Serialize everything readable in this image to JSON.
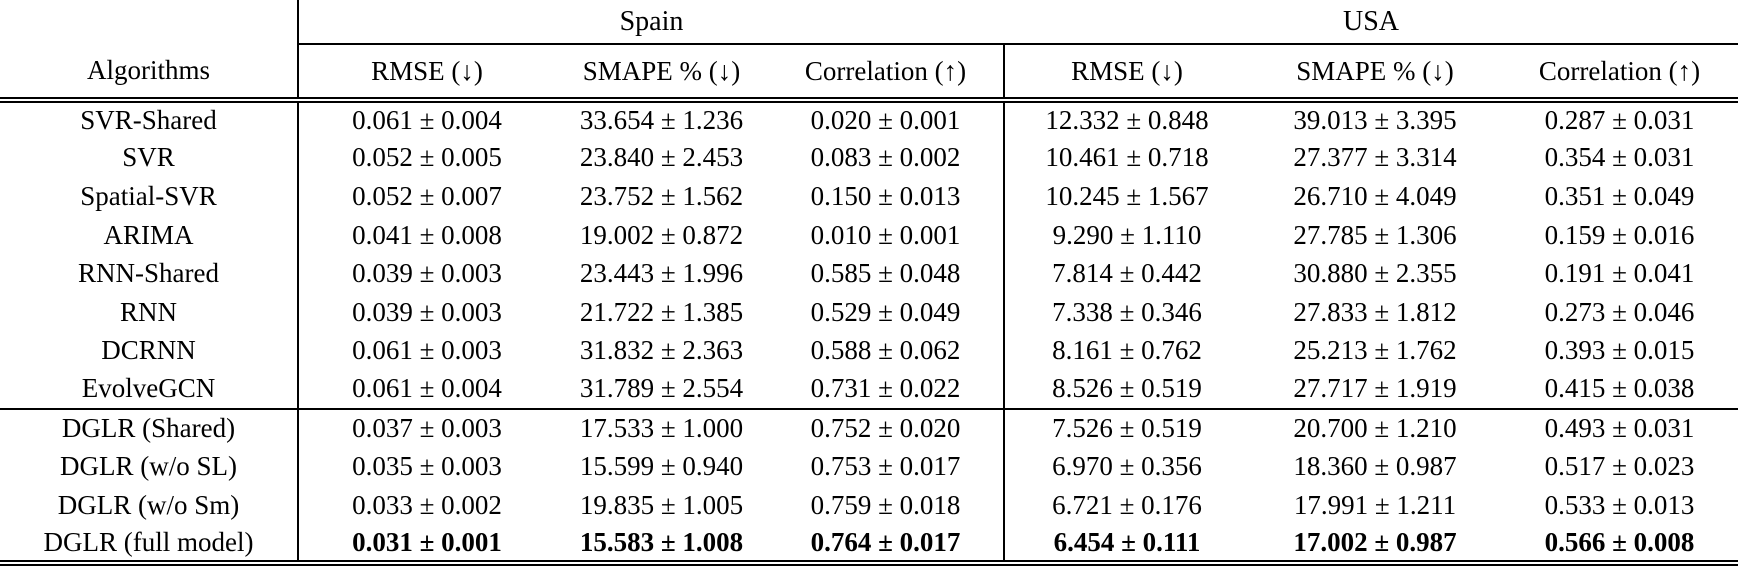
{
  "table": {
    "groups": [
      "Spain",
      "USA"
    ],
    "algorithms_header": "Algorithms",
    "metric_headers": [
      "RMSE (↓)",
      "SMAPE % (↓)",
      "Correlation (↑)",
      "RMSE (↓)",
      "SMAPE % (↓)",
      "Correlation (↑)"
    ],
    "sections": [
      {
        "rows": [
          {
            "name": "SVR-Shared",
            "bold": false,
            "values": [
              "0.061 ± 0.004",
              "33.654 ± 1.236",
              "0.020 ± 0.001",
              "12.332 ± 0.848",
              "39.013 ± 3.395",
              "0.287 ± 0.031"
            ]
          },
          {
            "name": "SVR",
            "bold": false,
            "values": [
              "0.052 ± 0.005",
              "23.840 ± 2.453",
              "0.083 ± 0.002",
              "10.461 ± 0.718",
              "27.377 ± 3.314",
              "0.354 ± 0.031"
            ]
          },
          {
            "name": "Spatial-SVR",
            "bold": false,
            "values": [
              "0.052 ± 0.007",
              "23.752 ± 1.562",
              "0.150 ± 0.013",
              "10.245 ± 1.567",
              "26.710 ± 4.049",
              "0.351 ± 0.049"
            ]
          },
          {
            "name": "ARIMA",
            "bold": false,
            "values": [
              "0.041 ± 0.008",
              "19.002 ± 0.872",
              "0.010 ± 0.001",
              "9.290 ± 1.110",
              "27.785 ± 1.306",
              "0.159 ± 0.016"
            ]
          },
          {
            "name": "RNN-Shared",
            "bold": false,
            "values": [
              "0.039 ± 0.003",
              "23.443 ± 1.996",
              "0.585 ± 0.048",
              "7.814 ± 0.442",
              "30.880 ± 2.355",
              "0.191 ± 0.041"
            ]
          },
          {
            "name": "RNN",
            "bold": false,
            "values": [
              "0.039 ± 0.003",
              "21.722 ± 1.385",
              "0.529 ± 0.049",
              "7.338 ± 0.346",
              "27.833 ± 1.812",
              "0.273 ± 0.046"
            ]
          },
          {
            "name": "DCRNN",
            "bold": false,
            "values": [
              "0.061 ± 0.003",
              "31.832 ± 2.363",
              "0.588 ± 0.062",
              "8.161 ± 0.762",
              "25.213 ± 1.762",
              "0.393 ± 0.015"
            ]
          },
          {
            "name": "EvolveGCN",
            "bold": false,
            "values": [
              "0.061 ± 0.004",
              "31.789 ± 2.554",
              "0.731 ± 0.022",
              "8.526 ± 0.519",
              "27.717 ± 1.919",
              "0.415 ± 0.038"
            ]
          }
        ]
      },
      {
        "rows": [
          {
            "name": "DGLR (Shared)",
            "bold": false,
            "values": [
              "0.037 ± 0.003",
              "17.533 ± 1.000",
              "0.752 ± 0.020",
              "7.526 ± 0.519",
              "20.700 ± 1.210",
              "0.493 ± 0.031"
            ]
          },
          {
            "name": "DGLR (w/o SL)",
            "bold": false,
            "values": [
              "0.035 ± 0.003",
              "15.599 ± 0.940",
              "0.753 ± 0.017",
              "6.970 ± 0.356",
              "18.360 ± 0.987",
              "0.517 ± 0.023"
            ]
          },
          {
            "name": "DGLR (w/o Sm)",
            "bold": false,
            "values": [
              "0.033 ± 0.002",
              "19.835 ± 1.005",
              "0.759 ± 0.018",
              "6.721 ± 0.176",
              "17.991 ± 1.211",
              "0.533 ± 0.013"
            ]
          },
          {
            "name": "DGLR (full model)",
            "bold": true,
            "values": [
              "0.031 ± 0.001",
              "15.583 ± 1.008",
              "0.764 ± 0.017",
              "6.454 ± 0.111",
              "17.002 ± 0.987",
              "0.566 ± 0.008"
            ]
          }
        ]
      }
    ]
  }
}
